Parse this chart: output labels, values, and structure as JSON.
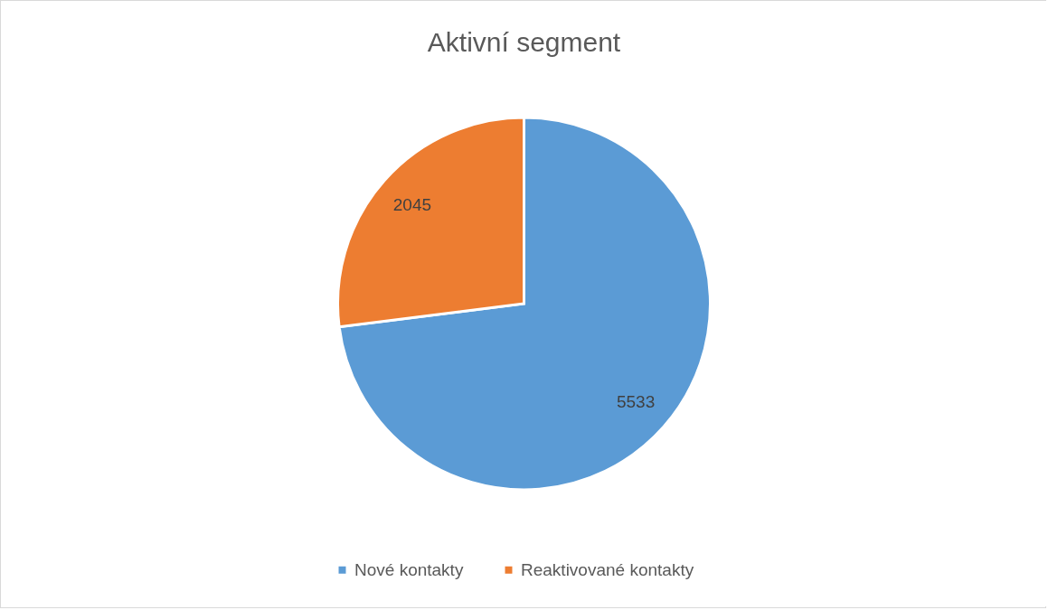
{
  "chart_data": {
    "type": "pie",
    "title": "Aktivní segment",
    "categories": [
      "Nové kontakty",
      "Reaktivované kontakty"
    ],
    "values": [
      5533,
      2045
    ],
    "colors": [
      "#5b9bd5",
      "#ed7d31"
    ],
    "data_labels": true,
    "legend": "bottom"
  }
}
